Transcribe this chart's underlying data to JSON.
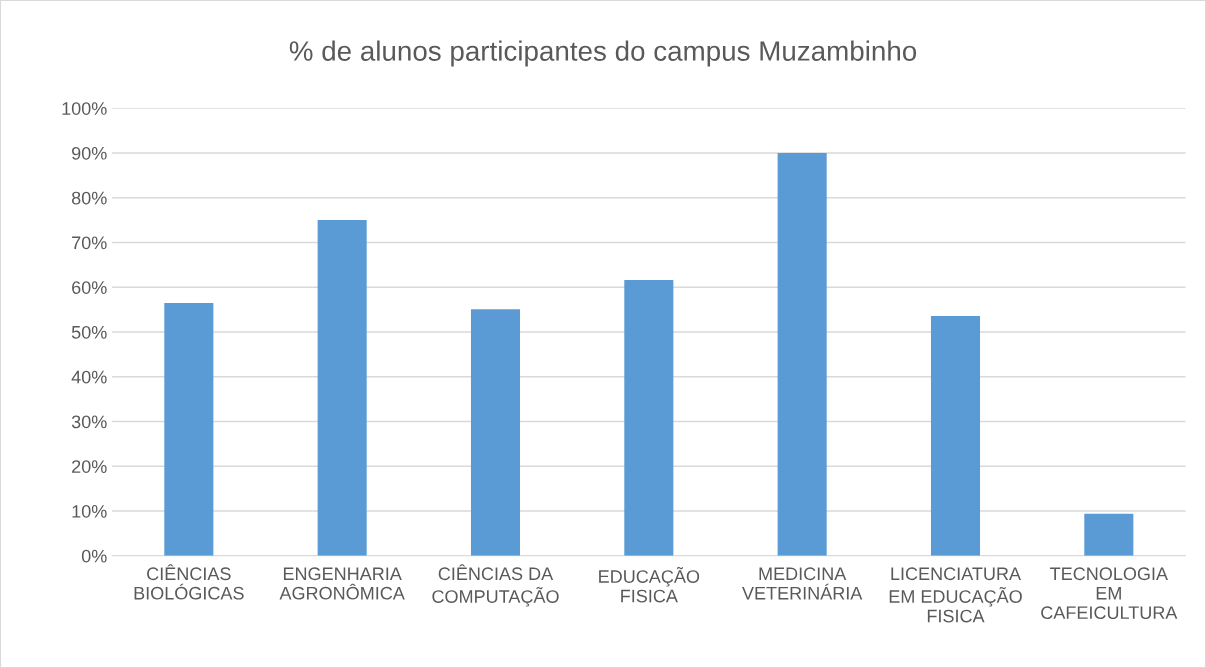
{
  "chart_data": {
    "type": "bar",
    "title": "% de alunos participantes do campus Muzambinho",
    "categories": [
      "CIÊNCIAS\nBIOLÓGICAS",
      "ENGENHARIA\nAGRONÔMICA",
      "CIÊNCIAS DA\nCOMPUTAÇÃO",
      "EDUCAÇÃO\nFISICA",
      "MEDICINA\nVETERINÁRIA",
      "LICENCIATURA\nEM EDUCAÇÃO\nFISICA",
      "TECNOLOGIA\nEM\nCAFEICULTURA"
    ],
    "values": [
      56.5,
      75.0,
      55.1,
      61.6,
      90.0,
      53.6,
      9.4
    ],
    "color": "#5b9bd5",
    "ylim": [
      0,
      100
    ],
    "yticks": [
      {
        "value": 0,
        "label": "0%"
      },
      {
        "value": 10,
        "label": "10%"
      },
      {
        "value": 20,
        "label": "20%"
      },
      {
        "value": 30,
        "label": "30%"
      },
      {
        "value": 40,
        "label": "40%"
      },
      {
        "value": 50,
        "label": "50%"
      },
      {
        "value": 60,
        "label": "60%"
      },
      {
        "value": 70,
        "label": "70%"
      },
      {
        "value": 80,
        "label": "80%"
      },
      {
        "value": 90,
        "label": "90%"
      },
      {
        "value": 100,
        "label": "100%"
      }
    ],
    "grid": "y",
    "legend": false
  }
}
